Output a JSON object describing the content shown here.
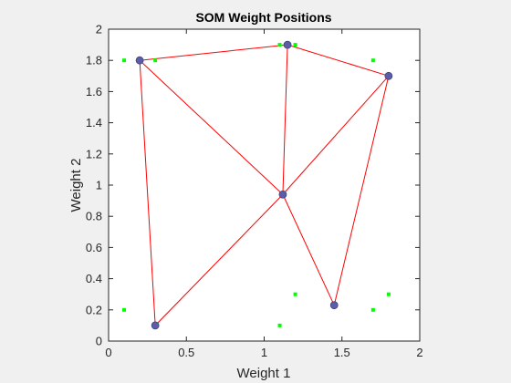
{
  "chart_data": {
    "type": "scatter",
    "title": "SOM Weight Positions",
    "xlabel": "Weight 1",
    "ylabel": "Weight 2",
    "xlim": [
      0,
      2
    ],
    "ylim": [
      0,
      2
    ],
    "x_ticks": [
      0,
      0.5,
      1,
      1.5,
      2
    ],
    "x_tick_labels": [
      "0",
      "0.5",
      "1",
      "1.5",
      "2"
    ],
    "y_ticks": [
      0,
      0.2,
      0.4,
      0.6,
      0.8,
      1,
      1.2,
      1.4,
      1.6,
      1.8,
      2
    ],
    "y_tick_labels": [
      "0",
      "0.2",
      "0.4",
      "0.6",
      "0.8",
      "1",
      "1.2",
      "1.4",
      "1.6",
      "1.8",
      "2"
    ],
    "grid": false,
    "series": [
      {
        "type": "scatter",
        "color": "#00ff00",
        "points": [
          {
            "x": 0.1,
            "y": 1.8
          },
          {
            "x": 0.3,
            "y": 1.8
          },
          {
            "x": 1.1,
            "y": 1.9
          },
          {
            "x": 1.2,
            "y": 1.9
          },
          {
            "x": 1.7,
            "y": 1.8
          },
          {
            "x": 0.1,
            "y": 0.2
          },
          {
            "x": 1.1,
            "y": 0.1
          },
          {
            "x": 1.2,
            "y": 0.3
          },
          {
            "x": 1.7,
            "y": 0.2
          },
          {
            "x": 1.8,
            "y": 0.3
          }
        ]
      },
      {
        "type": "neurons",
        "color": "#5b5ea6",
        "points": [
          {
            "x": 0.2,
            "y": 1.8
          },
          {
            "x": 1.15,
            "y": 1.9
          },
          {
            "x": 1.8,
            "y": 1.7
          },
          {
            "x": 1.12,
            "y": 0.94
          },
          {
            "x": 0.3,
            "y": 0.1
          },
          {
            "x": 1.45,
            "y": 0.23
          }
        ]
      }
    ],
    "edges": {
      "color": "#ff0000",
      "pairs": [
        [
          0,
          1
        ],
        [
          1,
          2
        ],
        [
          0,
          3
        ],
        [
          1,
          3
        ],
        [
          2,
          3
        ],
        [
          0,
          4
        ],
        [
          4,
          3
        ],
        [
          3,
          5
        ],
        [
          2,
          5
        ]
      ]
    }
  }
}
